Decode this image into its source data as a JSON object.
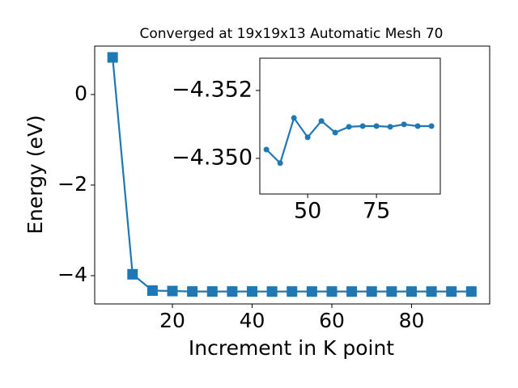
{
  "chart_data": [
    {
      "type": "line",
      "title": "Converged at 19x19x13 Automatic Mesh 70",
      "x_label": "Increment in K point",
      "y_label": "Energy (eV)",
      "x": [
        5,
        10,
        15,
        20,
        25,
        30,
        35,
        40,
        45,
        50,
        55,
        60,
        65,
        70,
        75,
        80,
        85,
        90,
        95
      ],
      "series": [
        {
          "color": "#1f77b4",
          "marker": "square",
          "values": [
            0.82,
            -3.97,
            -4.33,
            -4.34,
            -4.35,
            -4.35,
            -4.35026,
            -4.34986,
            -4.35119,
            -4.35062,
            -4.3511,
            -4.35076,
            -4.35093,
            -4.35095,
            -4.35095,
            -4.35093,
            -4.351,
            -4.35095,
            -4.35095
          ]
        }
      ],
      "xlim": [
        0.5,
        99.6
      ],
      "ylim": [
        -4.625,
        1.07
      ],
      "xticks": [
        20,
        40,
        60,
        80
      ],
      "yticks": [
        {
          "value": -4,
          "label": "−4"
        },
        {
          "value": -2,
          "label": "−2"
        },
        0
      ]
    },
    {
      "type": "line",
      "x": [
        35,
        40,
        45,
        50,
        55,
        60,
        65,
        70,
        75,
        80,
        85,
        90,
        95
      ],
      "series": [
        {
          "color": "#1f77b4",
          "marker": "circle",
          "values": [
            -4.35026,
            -4.34986,
            -4.35119,
            -4.35062,
            -4.3511,
            -4.35076,
            -4.35093,
            -4.35095,
            -4.35095,
            -4.35093,
            -4.351,
            -4.35095,
            -4.35095
          ]
        }
      ],
      "xlim": [
        32.6,
        98.2
      ],
      "ylim": [
        -4.34895,
        -4.35295
      ],
      "xticks": [
        50,
        75
      ],
      "yticks": [
        {
          "value": -4.352,
          "label": "−4.352"
        },
        {
          "value": -4.35,
          "label": "−4.350"
        }
      ]
    }
  ]
}
